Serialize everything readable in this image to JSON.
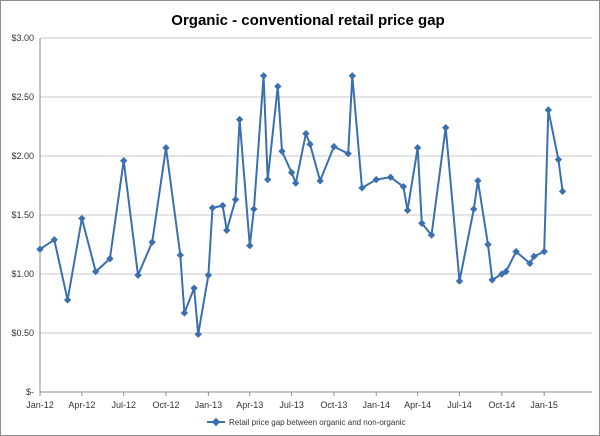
{
  "chart_data": {
    "type": "line",
    "title": "Organic - conventional  retail price gap",
    "xlabel": "",
    "ylabel": "",
    "ylim": [
      0,
      3
    ],
    "y_ticks": [
      {
        "value": 0,
        "label": "$-"
      },
      {
        "value": 0.5,
        "label": "$0.50"
      },
      {
        "value": 1.0,
        "label": "$1.00"
      },
      {
        "value": 1.5,
        "label": "$1.50"
      },
      {
        "value": 2.0,
        "label": "$2.00"
      },
      {
        "value": 2.5,
        "label": "$2.50"
      },
      {
        "value": 3.0,
        "label": "$3.00"
      }
    ],
    "x_ticks": [
      {
        "value": "2012-01",
        "label": "Jan-12"
      },
      {
        "value": "2012-04",
        "label": "Apr-12"
      },
      {
        "value": "2012-07",
        "label": "Jul-12"
      },
      {
        "value": "2012-10",
        "label": "Oct-12"
      },
      {
        "value": "2013-01",
        "label": "Jan-13"
      },
      {
        "value": "2013-04",
        "label": "Apr-13"
      },
      {
        "value": "2013-07",
        "label": "Jul-13"
      },
      {
        "value": "2013-10",
        "label": "Oct-13"
      },
      {
        "value": "2014-01",
        "label": "Jan-14"
      },
      {
        "value": "2014-04",
        "label": "Apr-14"
      },
      {
        "value": "2014-07",
        "label": "Jul-14"
      },
      {
        "value": "2014-10",
        "label": "Oct-14"
      },
      {
        "value": "2015-01",
        "label": "Jan-15"
      }
    ],
    "grid": {
      "horizontal": true,
      "vertical": false
    },
    "legend": {
      "position": "bottom"
    },
    "colors": {
      "series": "#3a6fb0",
      "grid": "#c8c8c8"
    },
    "series": [
      {
        "name": "Retail price gap between organic and non-organic",
        "points": [
          {
            "x": "2012-01",
            "y": 1.21
          },
          {
            "x": "2012-02",
            "y": 1.29
          },
          {
            "x": "2012-03",
            "y": 0.78
          },
          {
            "x": "2012-04",
            "y": 1.47
          },
          {
            "x": "2012-05",
            "y": 1.02
          },
          {
            "x": "2012-06",
            "y": 1.13
          },
          {
            "x": "2012-07",
            "y": 1.96
          },
          {
            "x": "2012-08",
            "y": 0.99
          },
          {
            "x": "2012-09",
            "y": 1.27
          },
          {
            "x": "2012-10",
            "y": 2.07
          },
          {
            "x": "2012-11",
            "y": 1.16
          },
          {
            "x": "2012-11-15",
            "y": 0.67
          },
          {
            "x": "2012-12",
            "y": 0.88
          },
          {
            "x": "2012-12-01",
            "y": 0.49
          },
          {
            "x": "2013-01",
            "y": 0.99
          },
          {
            "x": "2013-01-01",
            "y": 1.56
          },
          {
            "x": "2013-02",
            "y": 1.58
          },
          {
            "x": "2013-02-01",
            "y": 1.37
          },
          {
            "x": "2013-03",
            "y": 1.63
          },
          {
            "x": "2013-03-01",
            "y": 2.31
          },
          {
            "x": "2013-04",
            "y": 1.24
          },
          {
            "x": "2013-04-01",
            "y": 1.55
          },
          {
            "x": "2013-05",
            "y": 2.68
          },
          {
            "x": "2013-05-01",
            "y": 1.8
          },
          {
            "x": "2013-06",
            "y": 2.59
          },
          {
            "x": "2013-06-01",
            "y": 2.04
          },
          {
            "x": "2013-07",
            "y": 1.86
          },
          {
            "x": "2013-07-01",
            "y": 1.77
          },
          {
            "x": "2013-08",
            "y": 2.19
          },
          {
            "x": "2013-08-01",
            "y": 2.1
          },
          {
            "x": "2013-09",
            "y": 1.79
          },
          {
            "x": "2013-10",
            "y": 2.08
          },
          {
            "x": "2013-11",
            "y": 2.02
          },
          {
            "x": "2013-11-01",
            "y": 2.68
          },
          {
            "x": "2013-12",
            "y": 1.73
          },
          {
            "x": "2014-01",
            "y": 1.8
          },
          {
            "x": "2014-02",
            "y": 1.82
          },
          {
            "x": "2014-03",
            "y": 1.74
          },
          {
            "x": "2014-03-01",
            "y": 1.54
          },
          {
            "x": "2014-04",
            "y": 2.07
          },
          {
            "x": "2014-04-01",
            "y": 1.43
          },
          {
            "x": "2014-05",
            "y": 1.33
          },
          {
            "x": "2014-06",
            "y": 2.24
          },
          {
            "x": "2014-07",
            "y": 0.94
          },
          {
            "x": "2014-08",
            "y": 1.55
          },
          {
            "x": "2014-08-15",
            "y": 1.79
          },
          {
            "x": "2014-09",
            "y": 1.25
          },
          {
            "x": "2014-09-01",
            "y": 0.95
          },
          {
            "x": "2014-10",
            "y": 1.0
          },
          {
            "x": "2014-10-01",
            "y": 1.02
          },
          {
            "x": "2014-11",
            "y": 1.19
          },
          {
            "x": "2014-12",
            "y": 1.09
          },
          {
            "x": "2014-12-01",
            "y": 1.15
          },
          {
            "x": "2015-01",
            "y": 1.19
          },
          {
            "x": "2015-01-01",
            "y": 2.39
          },
          {
            "x": "2015-02",
            "y": 1.97
          },
          {
            "x": "2015-02-01",
            "y": 1.7
          }
        ]
      }
    ]
  }
}
